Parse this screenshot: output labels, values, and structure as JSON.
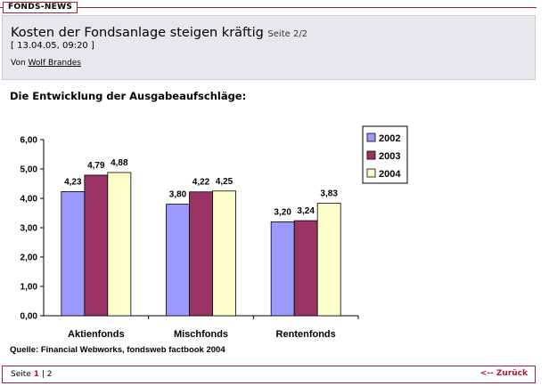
{
  "section_tag": "FONDS-NEWS",
  "article": {
    "title": "Kosten der Fondsanlage steigen kräftig",
    "page_indicator": "Seite 2/2",
    "date": "[ 13.04.05, 09:20 ]",
    "author_prefix": "Von",
    "author_name": "Wolf Brandes"
  },
  "subheading": "Die Entwicklung der Ausgabeaufschläge:",
  "chart_data": {
    "type": "bar",
    "categories": [
      "Aktienfonds",
      "Mischfonds",
      "Rentenfonds"
    ],
    "series": [
      {
        "name": "2002",
        "values": [
          4.23,
          3.8,
          3.2
        ],
        "labels": [
          "4,23",
          "3,80",
          "3,20"
        ],
        "color": "#9999ff"
      },
      {
        "name": "2003",
        "values": [
          4.79,
          4.22,
          3.24
        ],
        "labels": [
          "4,79",
          "4,22",
          "3,24"
        ],
        "color": "#993366"
      },
      {
        "name": "2004",
        "values": [
          4.88,
          4.25,
          3.83
        ],
        "labels": [
          "4,88",
          "4,25",
          "3,83"
        ],
        "color": "#ffffcc"
      }
    ],
    "y_ticks": [
      0,
      1,
      2,
      3,
      4,
      5,
      6
    ],
    "y_tick_labels": [
      "0,00",
      "1,00",
      "2,00",
      "3,00",
      "4,00",
      "5,00",
      "6,00"
    ],
    "ylim": [
      0,
      6
    ],
    "grid": false,
    "legend_position": "top-right",
    "title": "",
    "xlabel": "",
    "ylabel": ""
  },
  "source": "Quelle: Financial Webworks, fondsweb factbook 2004",
  "footer": {
    "pager_prefix": "Seite",
    "page_1": "1",
    "separator": "|",
    "page_2": "2",
    "back_label": "<-- Zurück"
  }
}
